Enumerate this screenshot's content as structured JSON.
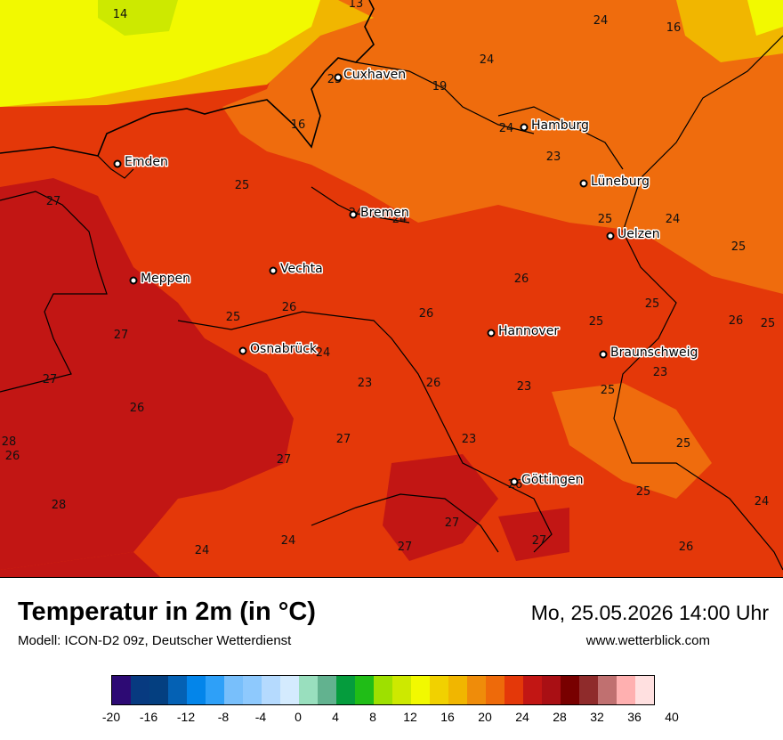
{
  "title": "Temperatur in 2m (in °C)",
  "subtitle": "Modell: ICON-D2 09z, Deutscher Wetterdienst",
  "datetime": "Mo, 25.05.2026 14:00 Uhr",
  "website": "www.wetterblick.com",
  "cities": [
    "Cuxhaven",
    "Hamburg",
    "Emden",
    "Lüneburg",
    "Bremen",
    "Uelzen",
    "Vechta",
    "Meppen",
    "Hannover",
    "Osnabrück",
    "Braunschweig",
    "Göttingen"
  ],
  "temperature_labels": [
    "14",
    "13",
    "24",
    "16",
    "24",
    "25",
    "19",
    "16",
    "24",
    "23",
    "27",
    "25",
    "24",
    "24",
    "25",
    "24",
    "25",
    "26",
    "26",
    "27",
    "25",
    "26",
    "25",
    "25",
    "27",
    "24",
    "26",
    "23",
    "23",
    "25",
    "26",
    "23",
    "26",
    "25",
    "27",
    "23",
    "27",
    "26",
    "28",
    "26",
    "25",
    "24",
    "27",
    "24",
    "27",
    "27",
    "26",
    "25",
    "24",
    "28"
  ],
  "legend": {
    "colors": [
      "#2d0a74",
      "#073a80",
      "#043f80",
      "#0461b4",
      "#0385ea",
      "#2ea0f8",
      "#78bffb",
      "#8ec9fd",
      "#b5dafe",
      "#d4ebfe",
      "#99dfbe",
      "#62b28f",
      "#059c3d",
      "#20bd17",
      "#9ee000",
      "#cde900",
      "#f2f900",
      "#f1d100",
      "#f1b600",
      "#ef8c0a",
      "#ee6a0a",
      "#e43809",
      "#c21614",
      "#a90f14",
      "#780000",
      "#8f2b2b",
      "#c07070",
      "#ffb0b0",
      "#ffe0e0"
    ],
    "ticks": [
      "-20",
      "-16",
      "-12",
      "-8",
      "-4",
      "0",
      "4",
      "8",
      "12",
      "16",
      "20",
      "24",
      "28",
      "32",
      "36",
      "40"
    ]
  }
}
